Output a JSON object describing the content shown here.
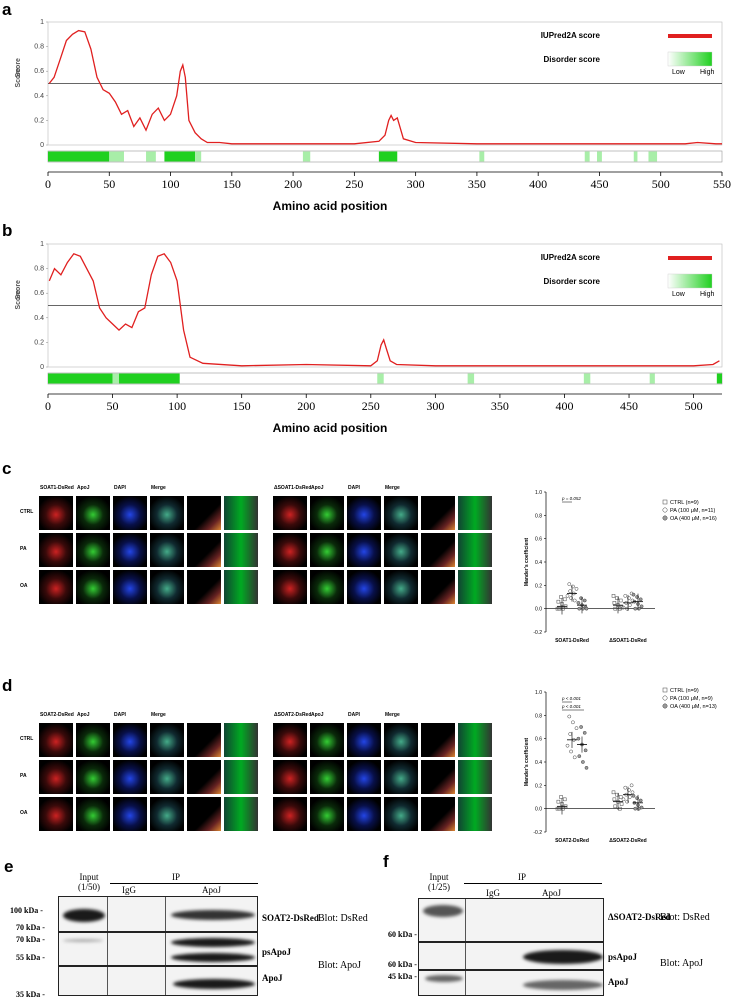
{
  "panels": {
    "a": "a",
    "b": "b",
    "c": "c",
    "d": "d",
    "e": "e",
    "f": "f"
  },
  "disorder": {
    "y_axis_label": "Score",
    "x_axis_title": "Amino acid position",
    "legend": {
      "iupred": "IUPred2A score",
      "disorder": "Disorder score",
      "low": "Low",
      "high": "High"
    },
    "threshold": 0.5,
    "iupred_color": "#e02020",
    "disorder_color": "#20d020"
  },
  "chart_data": [
    {
      "type": "line",
      "panel": "a",
      "xlabel": "Amino acid position",
      "ylabel": "Score",
      "xlim": [
        0,
        550
      ],
      "ylim": [
        0,
        1
      ],
      "x_ticks": [
        0,
        50,
        100,
        150,
        200,
        250,
        300,
        350,
        400,
        450,
        500,
        550
      ],
      "y_ticks": [
        0,
        0.2,
        0.4,
        0.6,
        0.8,
        1
      ],
      "series": [
        {
          "name": "IUPred2A score",
          "x": [
            1,
            5,
            10,
            15,
            20,
            25,
            30,
            35,
            40,
            45,
            50,
            55,
            60,
            65,
            70,
            75,
            80,
            85,
            90,
            95,
            100,
            105,
            108,
            110,
            112,
            115,
            120,
            125,
            130,
            140,
            150,
            200,
            250,
            270,
            275,
            278,
            280,
            282,
            285,
            290,
            300,
            350,
            400,
            450,
            500,
            520,
            530,
            545,
            550
          ],
          "y": [
            0.5,
            0.55,
            0.7,
            0.85,
            0.9,
            0.93,
            0.92,
            0.78,
            0.55,
            0.45,
            0.42,
            0.35,
            0.25,
            0.28,
            0.15,
            0.22,
            0.12,
            0.25,
            0.3,
            0.2,
            0.25,
            0.4,
            0.6,
            0.65,
            0.55,
            0.2,
            0.1,
            0.05,
            0.02,
            0.02,
            0.01,
            0.01,
            0.01,
            0.03,
            0.08,
            0.2,
            0.24,
            0.2,
            0.22,
            0.05,
            0.02,
            0.01,
            0.01,
            0.01,
            0.01,
            0.01,
            0.02,
            0.01,
            0.01
          ]
        }
      ],
      "disorder_segments": [
        [
          0,
          50,
          "strong"
        ],
        [
          50,
          62,
          "light"
        ],
        [
          80,
          88,
          "light"
        ],
        [
          95,
          120,
          "strong"
        ],
        [
          120,
          125,
          "light"
        ],
        [
          208,
          214,
          "light"
        ],
        [
          270,
          285,
          "strong"
        ],
        [
          352,
          356,
          "light"
        ],
        [
          438,
          442,
          "light"
        ],
        [
          448,
          452,
          "light"
        ],
        [
          478,
          481,
          "light"
        ],
        [
          490,
          497,
          "light"
        ]
      ]
    },
    {
      "type": "line",
      "panel": "b",
      "xlabel": "Amino acid position",
      "ylabel": "Score",
      "xlim": [
        0,
        522
      ],
      "ylim": [
        0,
        1
      ],
      "x_ticks": [
        0,
        50,
        100,
        150,
        200,
        250,
        300,
        350,
        400,
        450,
        500
      ],
      "y_ticks": [
        0,
        0.2,
        0.4,
        0.6,
        0.8,
        1
      ],
      "series": [
        {
          "name": "IUPred2A score",
          "x": [
            1,
            5,
            10,
            15,
            20,
            25,
            30,
            35,
            40,
            45,
            50,
            55,
            60,
            65,
            70,
            75,
            80,
            85,
            90,
            95,
            100,
            105,
            110,
            120,
            150,
            200,
            250,
            255,
            258,
            260,
            262,
            265,
            270,
            300,
            350,
            400,
            450,
            500,
            515,
            520
          ],
          "y": [
            0.7,
            0.8,
            0.75,
            0.85,
            0.92,
            0.9,
            0.8,
            0.7,
            0.48,
            0.4,
            0.35,
            0.3,
            0.35,
            0.32,
            0.45,
            0.48,
            0.75,
            0.9,
            0.92,
            0.85,
            0.7,
            0.3,
            0.08,
            0.03,
            0.01,
            0.02,
            0.01,
            0.05,
            0.18,
            0.22,
            0.15,
            0.05,
            0.02,
            0.01,
            0.01,
            0.01,
            0.01,
            0.01,
            0.02,
            0.05
          ]
        }
      ],
      "disorder_segments": [
        [
          0,
          50,
          "strong"
        ],
        [
          50,
          55,
          "light"
        ],
        [
          55,
          102,
          "strong"
        ],
        [
          255,
          260,
          "light"
        ],
        [
          325,
          330,
          "light"
        ],
        [
          415,
          420,
          "light"
        ],
        [
          466,
          470,
          "light"
        ],
        [
          518,
          522,
          "strong"
        ]
      ]
    },
    {
      "type": "scatter",
      "panel": "c",
      "ylabel": "Mander's coefficient",
      "ylim": [
        -0.2,
        1.0
      ],
      "y_ticks": [
        "-0.2",
        "0.0",
        "0.2",
        "0.4",
        "0.6",
        "0.8",
        "1.0"
      ],
      "groups": [
        "SOAT1-DsRed",
        "ΔSOAT1-DsRed"
      ],
      "annotation": "p = 0.052",
      "series": [
        {
          "name": "CTRL (n=9)",
          "mean": [
            0.02,
            0.03
          ]
        },
        {
          "name": "PA (100 μM, n=11)",
          "mean": [
            0.13,
            0.05
          ]
        },
        {
          "name": "OA (400 μM, n=16)",
          "mean": [
            0.03,
            0.06
          ]
        }
      ]
    },
    {
      "type": "scatter",
      "panel": "d",
      "ylabel": "Mander's coefficient",
      "ylim": [
        -0.2,
        1.0
      ],
      "y_ticks": [
        "-0.2",
        "0.0",
        "0.2",
        "0.4",
        "0.6",
        "0.8",
        "1.0"
      ],
      "groups": [
        "SOAT2-DsRed",
        "ΔSOAT2-DsRed"
      ],
      "annotations": [
        "p < 0.001",
        "p < 0.001"
      ],
      "series": [
        {
          "name": "CTRL (n=9)",
          "mean": [
            0.02,
            0.06
          ]
        },
        {
          "name": "PA (100 μM, n=9)",
          "mean": [
            0.59,
            0.12
          ]
        },
        {
          "name": "OA (400 μM, n=13)",
          "mean": [
            0.55,
            0.05
          ]
        }
      ]
    }
  ],
  "microscopy": {
    "c": {
      "left_cols": [
        "SOAT1-DsRed",
        "ApoJ",
        "DAPI",
        "Merge"
      ],
      "right_cols": [
        "ΔSOAT1-DsRed",
        "ApoJ",
        "DAPI",
        "Merge"
      ],
      "rows": [
        "CTRL",
        "PA",
        "OA"
      ]
    },
    "d": {
      "left_cols": [
        "SOAT2-DsRed",
        "ApoJ",
        "DAPI",
        "Merge"
      ],
      "right_cols": [
        "ΔSOAT2-DsRed",
        "ApoJ",
        "DAPI",
        "Merge"
      ],
      "rows": [
        "CTRL",
        "PA",
        "OA"
      ]
    }
  },
  "blots": {
    "e": {
      "input": "Input",
      "input_ratio": "(1/50)",
      "ip": "IP",
      "igg": "IgG",
      "apoj": "ApoJ",
      "markers": [
        "100 kDa -",
        "70 kDa -",
        "70 kDa -",
        "55 kDa -",
        "35 kDa -"
      ],
      "bands": [
        "SOAT2-DsRed",
        "psApoJ",
        "ApoJ"
      ],
      "blot_dsred": "Blot: DsRed",
      "blot_apoj": "Blot: ApoJ"
    },
    "f": {
      "input": "Input",
      "input_ratio": "(1/25)",
      "ip": "IP",
      "igg": "IgG",
      "apoj": "ApoJ",
      "markers": [
        "60 kDa -",
        "60 kDa -",
        "45 kDa -"
      ],
      "bands": [
        "ΔSOAT2-DsRed",
        "psApoJ",
        "ApoJ"
      ],
      "blot_dsred": "Blot: DsRed",
      "blot_apoj": "Blot: ApoJ"
    }
  }
}
